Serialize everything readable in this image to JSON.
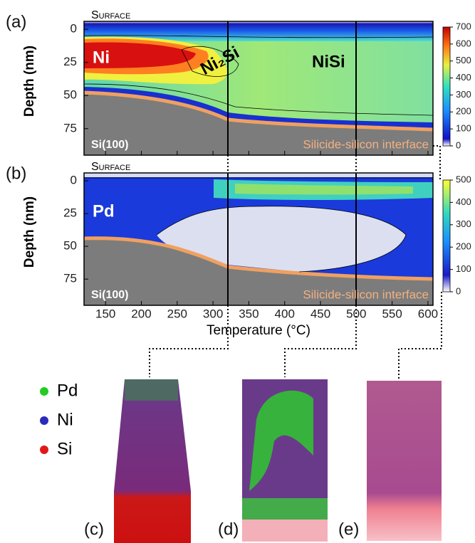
{
  "panels": {
    "a": {
      "label": "(a)",
      "surface": "Surface",
      "substrate": "Si(100)",
      "interface": "Silicide-silicon interface",
      "phases": [
        "Ni",
        "Ni₂Si",
        "NiSi"
      ],
      "colorbar": {
        "lim": [
          0,
          700
        ],
        "ticks": [
          0,
          100,
          200,
          300,
          400,
          500,
          600,
          700
        ]
      }
    },
    "b": {
      "label": "(b)",
      "surface": "Surface",
      "substrate": "Si(100)",
      "interface": "Silicide-silicon interface",
      "phases": [
        "Pd"
      ],
      "colorbar": {
        "lim": [
          0,
          500
        ],
        "ticks": [
          0,
          100,
          200,
          300,
          400,
          500
        ]
      }
    },
    "c": {
      "label": "(c)"
    },
    "d": {
      "label": "(d)"
    },
    "e": {
      "label": "(e)"
    }
  },
  "x_axis": {
    "label": "Temperature (°C)",
    "lim": [
      120,
      607
    ],
    "ticks": [
      150,
      200,
      250,
      300,
      350,
      400,
      450,
      500,
      550,
      600
    ]
  },
  "y_axis": {
    "label": "Depth (nm)",
    "lim": [
      -6,
      95
    ],
    "ticks": [
      0,
      25,
      50,
      75
    ]
  },
  "legend": [
    {
      "name": "Pd",
      "color": "#22cc22"
    },
    {
      "name": "Ni",
      "color": "#2b2bbb"
    },
    {
      "name": "Si",
      "color": "#e01818"
    }
  ]
}
